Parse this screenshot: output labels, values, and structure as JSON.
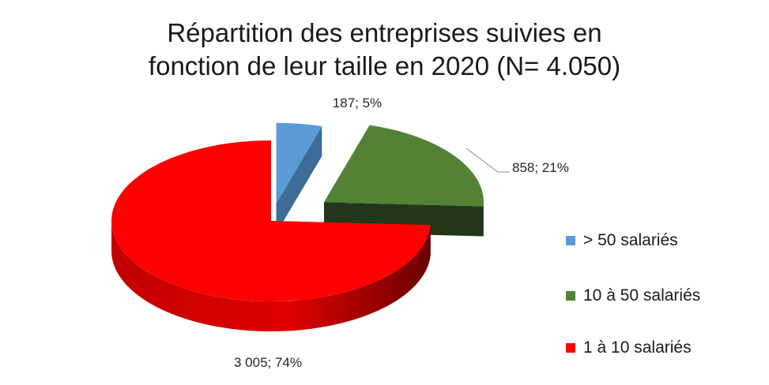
{
  "chart_data": {
    "type": "pie",
    "title_lines": [
      "Répartition des entreprises suivies en",
      "fonction de leur taille en 2020 (N= 4.050)"
    ],
    "total_label": "N= 4.050",
    "slices": [
      {
        "name": "> 50 salariés",
        "value": 187,
        "percent": 5,
        "label": "187; 5%",
        "color": "#5b9bd5",
        "side_color": "#3d6c99"
      },
      {
        "name": "10 à 50 salariés",
        "value": 858,
        "percent": 21,
        "label": "858; 21%",
        "color": "#548235",
        "side_color": "#22361a"
      },
      {
        "name": "1 à 10 salariés",
        "value": 3005,
        "percent": 74,
        "label": "3 005; 74%",
        "color": "#ff0000",
        "side_color": "#8c0000"
      }
    ],
    "legend": {
      "position": "right",
      "items": [
        "> 50 salariés",
        "10 à 50 salariés",
        "1 à 10 salariés"
      ]
    },
    "style": "3d-exploded"
  }
}
